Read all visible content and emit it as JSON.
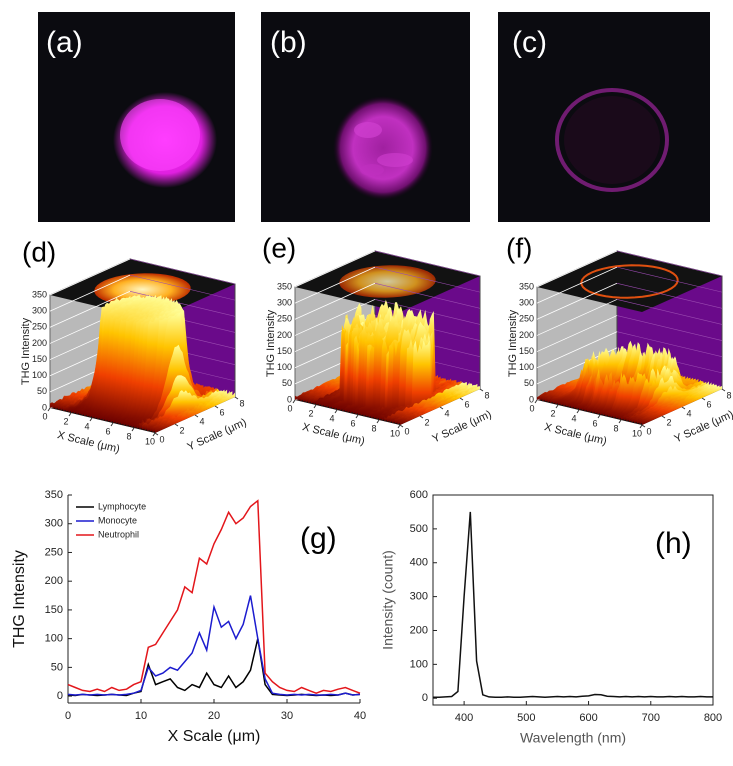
{
  "images": [
    {
      "label": "(a)"
    },
    {
      "label": "(b)"
    },
    {
      "label": "(c)"
    }
  ],
  "chart_data": [
    {
      "type": "surface",
      "label": "(d)",
      "zlabel": "THG Intensity",
      "xlabel": "X Scale (μm)",
      "ylabel": "Y Scale (μm)",
      "zlim": [
        0,
        350
      ],
      "zticks": [
        0,
        50,
        100,
        150,
        200,
        250,
        300,
        350
      ],
      "xlim": [
        0,
        10
      ],
      "xticks": [
        0,
        2,
        4,
        6,
        8,
        10
      ],
      "ylim": [
        0,
        8
      ],
      "yticks": [
        0,
        2,
        4,
        6,
        8
      ]
    },
    {
      "type": "surface",
      "label": "(e)",
      "zlabel": "THG Intensity",
      "xlabel": "X Scale (μm)",
      "ylabel": "Y Scale (μm)",
      "zlim": [
        0,
        350
      ],
      "zticks": [
        0,
        50,
        100,
        150,
        200,
        250,
        300,
        350
      ],
      "xlim": [
        0,
        10
      ],
      "xticks": [
        0,
        2,
        4,
        6,
        8,
        10
      ],
      "ylim": [
        0,
        8
      ],
      "yticks": [
        0,
        2,
        4,
        6,
        8
      ]
    },
    {
      "type": "surface",
      "label": "(f)",
      "zlabel": "THG Intensity",
      "xlabel": "X Scale (μm)",
      "ylabel": "Y Scale (μm)",
      "zlim": [
        0,
        350
      ],
      "zticks": [
        0,
        50,
        100,
        150,
        200,
        250,
        300,
        350
      ],
      "xlim": [
        0,
        10
      ],
      "xticks": [
        0,
        2,
        4,
        6,
        8,
        10
      ],
      "ylim": [
        0,
        8
      ],
      "yticks": [
        0,
        2,
        4,
        6,
        8
      ]
    },
    {
      "type": "line",
      "label": "(g)",
      "xlabel": "X Scale (μm)",
      "ylabel": "THG Intensity",
      "xlim": [
        0,
        40
      ],
      "xticks": [
        0,
        10,
        20,
        30,
        40
      ],
      "ylim": [
        -12,
        350
      ],
      "yticks": [
        0,
        50,
        100,
        150,
        200,
        250,
        300,
        350
      ],
      "legend": "upper left",
      "box": false,
      "x": [
        0,
        1,
        2,
        3,
        4,
        5,
        6,
        7,
        8,
        9,
        10,
        11,
        12,
        13,
        14,
        15,
        16,
        17,
        18,
        19,
        20,
        21,
        22,
        23,
        24,
        25,
        26,
        27,
        28,
        29,
        30,
        31,
        32,
        33,
        34,
        35,
        36,
        37,
        38,
        39,
        40
      ],
      "series": [
        {
          "name": "Lymphocyte",
          "color": "#000000",
          "values": [
            2,
            1,
            3,
            2,
            1,
            2,
            3,
            2,
            1,
            5,
            8,
            55,
            20,
            25,
            30,
            15,
            10,
            20,
            15,
            40,
            20,
            15,
            35,
            15,
            25,
            45,
            100,
            20,
            3,
            2,
            1,
            2,
            3,
            2,
            1,
            2,
            1,
            2,
            5,
            2,
            3
          ]
        },
        {
          "name": "Monocyte",
          "color": "#1c1ccf",
          "values": [
            3,
            2,
            3,
            2,
            3,
            2,
            3,
            2,
            3,
            5,
            10,
            50,
            35,
            40,
            50,
            45,
            60,
            75,
            110,
            80,
            155,
            120,
            130,
            100,
            125,
            175,
            100,
            30,
            5,
            3,
            2,
            3,
            2,
            3,
            2,
            2,
            3,
            2,
            5,
            2,
            3
          ]
        },
        {
          "name": "Neutrophil",
          "color": "#e3161b",
          "values": [
            20,
            15,
            10,
            8,
            12,
            8,
            15,
            10,
            12,
            20,
            25,
            85,
            90,
            110,
            130,
            150,
            190,
            180,
            240,
            230,
            265,
            290,
            320,
            300,
            310,
            330,
            340,
            40,
            25,
            15,
            10,
            8,
            15,
            10,
            5,
            10,
            8,
            12,
            15,
            10,
            5
          ]
        }
      ]
    },
    {
      "type": "line",
      "label": "(h)",
      "xlabel": "Wavelength (nm)",
      "ylabel": "Intensity (count)",
      "xlim": [
        350,
        800
      ],
      "xticks": [
        400,
        500,
        600,
        700,
        800
      ],
      "ylim": [
        -20,
        600
      ],
      "yticks": [
        0,
        100,
        200,
        300,
        400,
        500,
        600
      ],
      "box": true,
      "color": "#111111",
      "x": [
        350,
        360,
        370,
        380,
        390,
        400,
        410,
        420,
        430,
        440,
        450,
        460,
        470,
        480,
        490,
        500,
        510,
        520,
        530,
        540,
        550,
        560,
        570,
        580,
        590,
        600,
        610,
        620,
        630,
        640,
        650,
        660,
        670,
        680,
        690,
        700,
        710,
        720,
        730,
        740,
        750,
        760,
        770,
        780,
        790,
        800
      ],
      "values": [
        3,
        3,
        4,
        5,
        20,
        300,
        550,
        110,
        10,
        4,
        3,
        3,
        4,
        3,
        3,
        4,
        5,
        4,
        3,
        4,
        5,
        4,
        5,
        4,
        6,
        7,
        11,
        10,
        6,
        5,
        4,
        5,
        4,
        5,
        4,
        5,
        4,
        4,
        5,
        4,
        5,
        4,
        4,
        5,
        4,
        4
      ]
    }
  ]
}
